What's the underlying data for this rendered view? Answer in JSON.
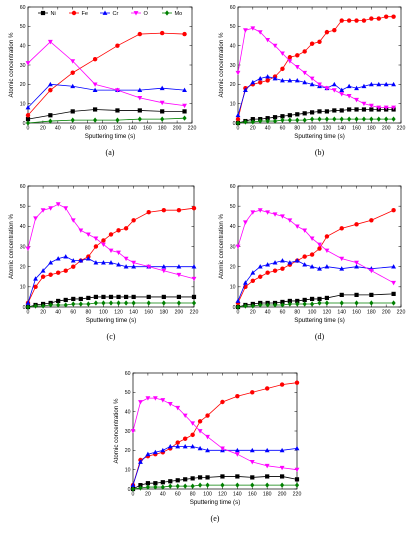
{
  "legend_entries": [
    "Ni",
    "Fe",
    "Cr",
    "O",
    "Mo"
  ],
  "series_colors": {
    "Ni": "#000000",
    "Fe": "#ff0000",
    "Cr": "#0000ff",
    "O": "#ff00ff",
    "Mo": "#008000"
  },
  "series_markers": {
    "Ni": "square",
    "Fe": "circle",
    "Cr": "triangle-up",
    "O": "triangle-down",
    "Mo": "diamond"
  },
  "chart_data": [
    {
      "type": "line",
      "panel_label": "(a)",
      "xlabel": "Sputtering time (s)",
      "ylabel": "Atomic concentration %",
      "xlim": [
        0,
        220
      ],
      "ylim": [
        0,
        60
      ],
      "xticks": [
        0,
        20,
        40,
        60,
        80,
        100,
        120,
        140,
        160,
        180,
        200,
        220
      ],
      "yticks": [
        0,
        10,
        20,
        30,
        40,
        50,
        60
      ],
      "legend": "top",
      "series": [
        {
          "name": "Ni",
          "x": [
            0,
            30,
            60,
            90,
            120,
            150,
            180,
            210
          ],
          "y": [
            2,
            4,
            6,
            7,
            6.5,
            6.5,
            6,
            6
          ]
        },
        {
          "name": "Fe",
          "x": [
            0,
            30,
            60,
            90,
            120,
            150,
            180,
            210
          ],
          "y": [
            4,
            17,
            26,
            33,
            40,
            46,
            46.5,
            46
          ]
        },
        {
          "name": "Cr",
          "x": [
            0,
            30,
            60,
            90,
            120,
            150,
            180,
            210
          ],
          "y": [
            8,
            20,
            19,
            17,
            17,
            17,
            18,
            17
          ]
        },
        {
          "name": "O",
          "x": [
            0,
            30,
            60,
            90,
            120,
            150,
            180,
            210
          ],
          "y": [
            31,
            42,
            32,
            20,
            17,
            13,
            10.5,
            9
          ]
        },
        {
          "name": "Mo",
          "x": [
            0,
            30,
            60,
            90,
            120,
            150,
            180,
            210
          ],
          "y": [
            0,
            1,
            1.5,
            1.5,
            1.5,
            2,
            2,
            2.5
          ]
        }
      ]
    },
    {
      "type": "line",
      "panel_label": "(b)",
      "xlabel": "Sputtering time (s)",
      "ylabel": "Atomic concentration %",
      "xlim": [
        0,
        220
      ],
      "ylim": [
        0,
        60
      ],
      "xticks": [
        0,
        20,
        40,
        60,
        80,
        100,
        120,
        140,
        160,
        180,
        200,
        220
      ],
      "yticks": [
        0,
        10,
        20,
        30,
        40,
        50,
        60
      ],
      "series": [
        {
          "name": "Ni",
          "x": [
            0,
            10,
            20,
            30,
            40,
            50,
            60,
            70,
            80,
            90,
            100,
            110,
            120,
            130,
            140,
            150,
            160,
            170,
            180,
            190,
            200,
            210
          ],
          "y": [
            0,
            1,
            2,
            2,
            2.5,
            3,
            3.5,
            4,
            4.5,
            5,
            5.5,
            6,
            6,
            6.5,
            6.5,
            7,
            7,
            7,
            7,
            7,
            7,
            7
          ]
        },
        {
          "name": "Fe",
          "x": [
            0,
            10,
            20,
            30,
            40,
            50,
            60,
            70,
            80,
            90,
            100,
            110,
            120,
            130,
            140,
            150,
            160,
            170,
            180,
            190,
            200,
            210
          ],
          "y": [
            2,
            18,
            20,
            21,
            22,
            24,
            28,
            34,
            35,
            37,
            41,
            42,
            47,
            48,
            53,
            53,
            53,
            53,
            54,
            54,
            55,
            55
          ]
        },
        {
          "name": "Cr",
          "x": [
            0,
            10,
            20,
            30,
            40,
            50,
            60,
            70,
            80,
            90,
            100,
            110,
            120,
            130,
            140,
            150,
            160,
            170,
            180,
            190,
            200,
            210
          ],
          "y": [
            4,
            17,
            21,
            23,
            24,
            23,
            22,
            22,
            22,
            21,
            20,
            19,
            18,
            20,
            17,
            19,
            18,
            19,
            20,
            20,
            20,
            20
          ]
        },
        {
          "name": "O",
          "x": [
            0,
            10,
            20,
            30,
            40,
            50,
            60,
            70,
            80,
            90,
            100,
            110,
            120,
            130,
            140,
            150,
            160,
            170,
            180,
            190,
            200,
            210
          ],
          "y": [
            26,
            48,
            49,
            47,
            43,
            40,
            36,
            32,
            29,
            26,
            23,
            20,
            18,
            17,
            15,
            14,
            12,
            10,
            9,
            8,
            8,
            8
          ]
        },
        {
          "name": "Mo",
          "x": [
            0,
            10,
            20,
            30,
            40,
            50,
            60,
            70,
            80,
            90,
            100,
            110,
            120,
            130,
            140,
            150,
            160,
            170,
            180,
            190,
            200,
            210
          ],
          "y": [
            0,
            0.5,
            0.5,
            1,
            1,
            1,
            1.5,
            1.5,
            1.5,
            1.5,
            2,
            2,
            2,
            2,
            2,
            2,
            2,
            2,
            2,
            2,
            2,
            2
          ]
        }
      ]
    },
    {
      "type": "line",
      "panel_label": "(c)",
      "xlabel": "Sputtering time (s)",
      "ylabel": "Atomic concentration %",
      "xlim": [
        0,
        220
      ],
      "ylim": [
        0,
        60
      ],
      "xticks": [
        0,
        20,
        40,
        60,
        80,
        100,
        120,
        140,
        160,
        180,
        200,
        220
      ],
      "yticks": [
        0,
        10,
        20,
        30,
        40,
        50,
        60
      ],
      "series": [
        {
          "name": "Ni",
          "x": [
            0,
            10,
            20,
            30,
            40,
            50,
            60,
            70,
            80,
            90,
            100,
            110,
            120,
            130,
            140,
            160,
            180,
            200,
            220
          ],
          "y": [
            0,
            1,
            1.5,
            2,
            3,
            3.5,
            4,
            4,
            4.5,
            5,
            5,
            5,
            5,
            5,
            5,
            5,
            5,
            5,
            5
          ]
        },
        {
          "name": "Fe",
          "x": [
            0,
            10,
            20,
            30,
            40,
            50,
            60,
            70,
            80,
            90,
            100,
            110,
            120,
            130,
            140,
            160,
            180,
            200,
            220
          ],
          "y": [
            2,
            10,
            15,
            16,
            17,
            18,
            20,
            23,
            25,
            30,
            33,
            36,
            38,
            39,
            43,
            47,
            48,
            48,
            49
          ]
        },
        {
          "name": "Cr",
          "x": [
            0,
            10,
            20,
            30,
            40,
            50,
            60,
            70,
            80,
            90,
            100,
            110,
            120,
            130,
            140,
            160,
            180,
            200,
            220
          ],
          "y": [
            2,
            14,
            18,
            22,
            24,
            25,
            23,
            23,
            24,
            22,
            22,
            22,
            21,
            20,
            20,
            20,
            20,
            20,
            20
          ]
        },
        {
          "name": "O",
          "x": [
            0,
            10,
            20,
            30,
            40,
            50,
            60,
            70,
            80,
            90,
            100,
            110,
            120,
            130,
            140,
            160,
            180,
            200,
            220
          ],
          "y": [
            29,
            44,
            48,
            49,
            51,
            49,
            43,
            38,
            36,
            34,
            31,
            28,
            27,
            24,
            22,
            20,
            18,
            16,
            14
          ]
        },
        {
          "name": "Mo",
          "x": [
            0,
            10,
            20,
            30,
            40,
            50,
            60,
            70,
            80,
            90,
            100,
            110,
            120,
            130,
            140,
            160,
            180,
            200,
            220
          ],
          "y": [
            0,
            0.5,
            0.5,
            1,
            1,
            1,
            1.5,
            1.5,
            1.5,
            2,
            2,
            2,
            2,
            2,
            2,
            2,
            2,
            2,
            2
          ]
        }
      ]
    },
    {
      "type": "line",
      "panel_label": "(d)",
      "xlabel": "Sputtering time (s)",
      "ylabel": "Atomic concentration %",
      "xlim": [
        0,
        220
      ],
      "ylim": [
        0,
        60
      ],
      "xticks": [
        0,
        20,
        40,
        60,
        80,
        100,
        120,
        140,
        160,
        180,
        200,
        220
      ],
      "yticks": [
        0,
        10,
        20,
        30,
        40,
        50,
        60
      ],
      "series": [
        {
          "name": "Ni",
          "x": [
            0,
            10,
            20,
            30,
            40,
            50,
            60,
            70,
            80,
            90,
            100,
            110,
            120,
            140,
            160,
            180,
            210
          ],
          "y": [
            0,
            1,
            1.5,
            2,
            2,
            2,
            2.5,
            3,
            3,
            3.5,
            4,
            4,
            4.5,
            6,
            6,
            6,
            6.5
          ]
        },
        {
          "name": "Fe",
          "x": [
            0,
            10,
            20,
            30,
            40,
            50,
            60,
            70,
            80,
            90,
            100,
            110,
            120,
            140,
            160,
            180,
            210
          ],
          "y": [
            2,
            10,
            13,
            15,
            17,
            18,
            19,
            21,
            23,
            25,
            26,
            29,
            35,
            39,
            41,
            43,
            48
          ]
        },
        {
          "name": "Cr",
          "x": [
            0,
            10,
            20,
            30,
            40,
            50,
            60,
            70,
            80,
            90,
            100,
            110,
            120,
            140,
            160,
            180,
            210
          ],
          "y": [
            3,
            12,
            17,
            20,
            21,
            22,
            23,
            22,
            23,
            21,
            20,
            19,
            20,
            19,
            20,
            19,
            20
          ]
        },
        {
          "name": "O",
          "x": [
            0,
            10,
            20,
            30,
            40,
            50,
            60,
            70,
            80,
            90,
            100,
            110,
            120,
            140,
            160,
            180,
            210
          ],
          "y": [
            30,
            42,
            47,
            48,
            47,
            46,
            45,
            43,
            40,
            38,
            34,
            31,
            28,
            24,
            22,
            18,
            12
          ]
        },
        {
          "name": "Mo",
          "x": [
            0,
            10,
            20,
            30,
            40,
            50,
            60,
            70,
            80,
            90,
            100,
            110,
            120,
            140,
            160,
            180,
            210
          ],
          "y": [
            0,
            0.5,
            0.5,
            1,
            1,
            1,
            1,
            1.5,
            1.5,
            1.5,
            1.5,
            2,
            2,
            2,
            2,
            2,
            2
          ]
        }
      ]
    },
    {
      "type": "line",
      "panel_label": "(e)",
      "xlabel": "Sputtering time (s)",
      "ylabel": "Atomic concentration %",
      "xlim": [
        0,
        220
      ],
      "ylim": [
        0,
        60
      ],
      "xticks": [
        0,
        20,
        40,
        60,
        80,
        100,
        120,
        140,
        160,
        180,
        200,
        220
      ],
      "yticks": [
        0,
        10,
        20,
        30,
        40,
        50,
        60
      ],
      "series": [
        {
          "name": "Ni",
          "x": [
            0,
            10,
            20,
            30,
            40,
            50,
            60,
            70,
            80,
            90,
            100,
            120,
            140,
            160,
            180,
            200,
            220
          ],
          "y": [
            0,
            2,
            3,
            3,
            3.5,
            4,
            4.5,
            5,
            5.5,
            6,
            6,
            6.5,
            6.5,
            6,
            6.5,
            6.5,
            5
          ]
        },
        {
          "name": "Fe",
          "x": [
            0,
            10,
            20,
            30,
            40,
            50,
            60,
            70,
            80,
            90,
            100,
            120,
            140,
            160,
            180,
            200,
            220
          ],
          "y": [
            2,
            15,
            17,
            18,
            19,
            21,
            24,
            26,
            28,
            35,
            38,
            45,
            48,
            50,
            52,
            54,
            55
          ]
        },
        {
          "name": "Cr",
          "x": [
            0,
            10,
            20,
            30,
            40,
            50,
            60,
            70,
            80,
            90,
            100,
            120,
            140,
            160,
            180,
            200,
            220
          ],
          "y": [
            2,
            14,
            18,
            19,
            20,
            22,
            22,
            22,
            22,
            21,
            20,
            20,
            20,
            20,
            20,
            20,
            21
          ]
        },
        {
          "name": "O",
          "x": [
            0,
            10,
            20,
            30,
            40,
            50,
            60,
            70,
            80,
            90,
            100,
            120,
            140,
            160,
            180,
            200,
            220
          ],
          "y": [
            30,
            45,
            47,
            47,
            46,
            44,
            42,
            38,
            34,
            30,
            27,
            21,
            18,
            14,
            12,
            11,
            10
          ]
        },
        {
          "name": "Mo",
          "x": [
            0,
            10,
            20,
            30,
            40,
            50,
            60,
            70,
            80,
            90,
            100,
            120,
            140,
            160,
            180,
            200,
            220
          ],
          "y": [
            0,
            0.5,
            1,
            1,
            1,
            1.5,
            1.5,
            1.5,
            1.5,
            2,
            2,
            2,
            2,
            2,
            2,
            2,
            2
          ]
        }
      ]
    }
  ]
}
